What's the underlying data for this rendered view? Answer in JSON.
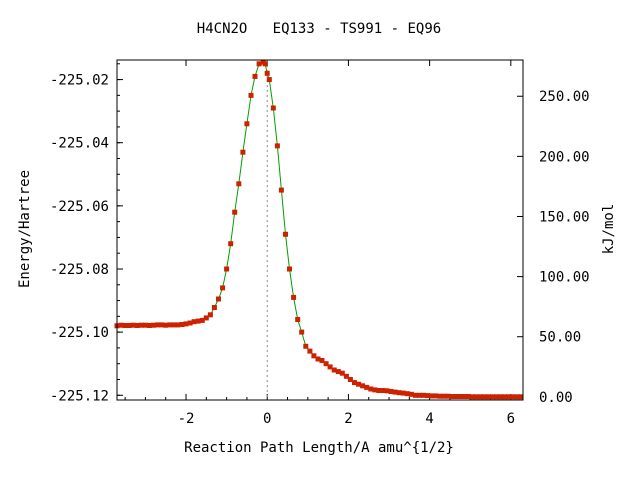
{
  "chart_data": {
    "type": "line",
    "title": "H4CN2O   EQ133 - TS991 - EQ96",
    "xlabel": "Reaction Path Length/A amu^{1/2}",
    "ylabel_left": "Energy/Hartree",
    "ylabel_right": "kJ/mol",
    "xlim": [
      -3.7,
      6.3
    ],
    "ylim": [
      -225.1215,
      -225.0138
    ],
    "x_ticks": [
      -2,
      0,
      2,
      4,
      6
    ],
    "x_tick_labels": [
      "-2",
      "0",
      "2",
      "4",
      "6"
    ],
    "y_ticks_left": [
      -225.02,
      -225.04,
      -225.06,
      -225.08,
      -225.1,
      -225.12
    ],
    "y_tick_labels_left": [
      "-225.02",
      "-225.04",
      "-225.06",
      "-225.08",
      "-225.10",
      "-225.12"
    ],
    "y_right_zero_at": -225.1205,
    "y_right_hartree_per_unit": 0.00038088,
    "y_ticks_right": [
      0,
      50,
      100,
      150,
      200,
      250
    ],
    "y_tick_labels_right": [
      "0.00",
      "50.00",
      "100.00",
      "150.00",
      "200.00",
      "250.00"
    ],
    "ts_x": 0,
    "line_color": "#00a000",
    "marker_color": "#cc2200",
    "guide_color": "#888888",
    "grid": false,
    "legend": "none",
    "series": [
      {
        "x": [
          -3.7,
          -3.6,
          -3.5,
          -3.4,
          -3.3,
          -3.2,
          -3.1,
          -3.0,
          -2.9,
          -2.8,
          -2.7,
          -2.6,
          -2.5,
          -2.4,
          -2.3,
          -2.2,
          -2.1,
          -2.0,
          -1.9,
          -1.8,
          -1.7,
          -1.6,
          -1.5,
          -1.4,
          -1.3,
          -1.2,
          -1.1,
          -1.0,
          -0.9,
          -0.8,
          -0.7,
          -0.6,
          -0.5,
          -0.4,
          -0.3,
          -0.2,
          -0.1,
          -0.05,
          0.0,
          0.05,
          0.15,
          0.25,
          0.35,
          0.45,
          0.55,
          0.65,
          0.75,
          0.85,
          0.95,
          1.05,
          1.15,
          1.25,
          1.35,
          1.45,
          1.55,
          1.65,
          1.75,
          1.85,
          1.95,
          2.05,
          2.15,
          2.25,
          2.35,
          2.45,
          2.55,
          2.65,
          2.75,
          2.85,
          2.95,
          3.05,
          3.15,
          3.25,
          3.35,
          3.45,
          3.55,
          3.65,
          3.75,
          3.85,
          3.95,
          4.05,
          4.15,
          4.25,
          4.35,
          4.45,
          4.55,
          4.65,
          4.75,
          4.85,
          4.95,
          5.05,
          5.15,
          5.25,
          5.35,
          5.45,
          5.55,
          5.65,
          5.75,
          5.85,
          5.95,
          6.05,
          6.15,
          6.25
        ],
        "y": [
          -225.098,
          -225.0978,
          -225.0979,
          -225.0979,
          -225.0978,
          -225.0979,
          -225.0978,
          -225.0978,
          -225.0979,
          -225.0978,
          -225.0977,
          -225.0977,
          -225.0978,
          -225.0977,
          -225.0977,
          -225.0977,
          -225.0976,
          -225.0974,
          -225.0971,
          -225.0967,
          -225.0965,
          -225.0963,
          -225.0955,
          -225.0945,
          -225.0922,
          -225.0895,
          -225.086,
          -225.08,
          -225.072,
          -225.062,
          -225.053,
          -225.043,
          -225.034,
          -225.025,
          -225.019,
          -225.015,
          -225.0145,
          -225.015,
          -225.018,
          -225.02,
          -225.029,
          -225.041,
          -225.055,
          -225.069,
          -225.08,
          -225.089,
          -225.096,
          -225.1,
          -225.1045,
          -225.106,
          -225.1075,
          -225.1085,
          -225.109,
          -225.11,
          -225.111,
          -225.112,
          -225.1125,
          -225.113,
          -225.114,
          -225.115,
          -225.116,
          -225.1165,
          -225.117,
          -225.1175,
          -225.118,
          -225.1183,
          -225.1185,
          -225.1185,
          -225.1186,
          -225.1188,
          -225.119,
          -225.1192,
          -225.1193,
          -225.1195,
          -225.1197,
          -225.12,
          -225.12,
          -225.12,
          -225.1201,
          -225.1202,
          -225.1202,
          -225.1203,
          -225.1203,
          -225.1203,
          -225.1204,
          -225.1204,
          -225.1204,
          -225.1204,
          -225.1204,
          -225.1205,
          -225.1205,
          -225.1205,
          -225.1205,
          -225.1205,
          -225.1205,
          -225.1205,
          -225.1205,
          -225.1205,
          -225.1205,
          -225.1205,
          -225.1205,
          -225.1205
        ]
      }
    ]
  }
}
